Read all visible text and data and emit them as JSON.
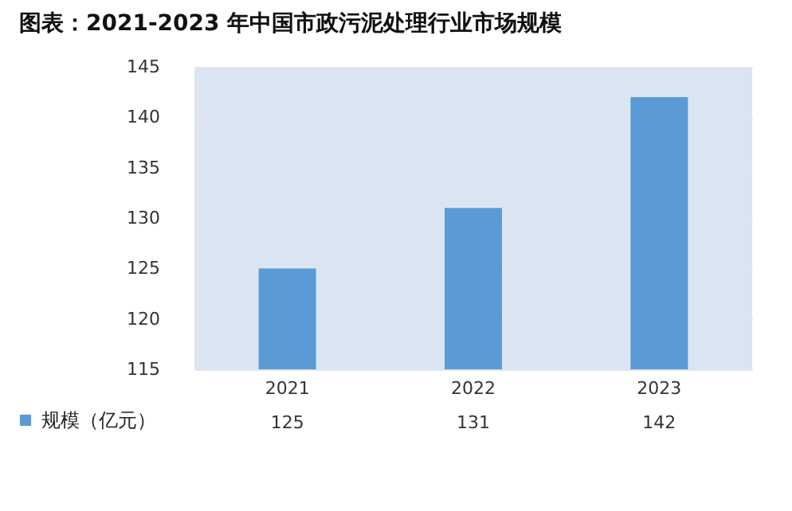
{
  "chart_data": {
    "type": "bar",
    "title": "图表：2021-2023 年中国市政污泥处理行业市场规模",
    "categories": [
      "2021",
      "2022",
      "2023"
    ],
    "series": [
      {
        "name": "规模（亿元）",
        "color": "#5b9bd5",
        "values": [
          125,
          131,
          142
        ]
      }
    ],
    "ylim": [
      115,
      145
    ],
    "yticks": [
      115,
      120,
      125,
      130,
      135,
      140,
      145
    ],
    "grid": "y",
    "data_labels": true,
    "legend": "bottom left"
  }
}
